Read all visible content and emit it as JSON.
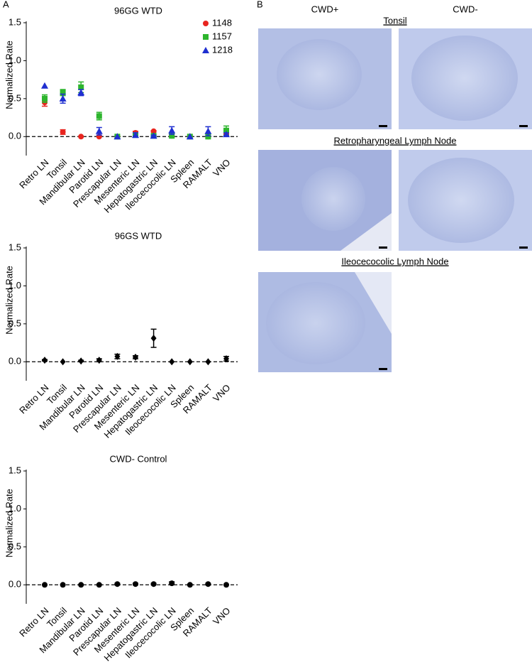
{
  "panel_labels": [
    "A",
    "B"
  ],
  "chart_data": [
    {
      "type": "scatter",
      "title": "96GG WTD",
      "y_label": "Normalized Rate",
      "categories": [
        "Retro LN",
        "Tonsil",
        "Mandibular LN",
        "Parotid LN",
        "Prescapular LN",
        "Mesenteric LN",
        "Hepatogastric LN",
        "Ileocecocolic LN",
        "Spleen",
        "RAMALT",
        "VNO"
      ],
      "series": [
        {
          "name": "1148",
          "color": "#e8251f",
          "marker": "circle",
          "values": [
            0.45,
            0.06,
            0.0,
            0.0,
            0.0,
            0.05,
            0.07,
            0.01,
            0.0,
            0.0,
            0.03
          ],
          "errors": [
            0.05,
            0.03,
            0.0,
            0.0,
            0.0,
            0.02,
            0.01,
            0.0,
            0.0,
            0.0,
            0.01
          ]
        },
        {
          "name": "1157",
          "color": "#2db52d",
          "marker": "square",
          "values": [
            0.5,
            0.58,
            0.65,
            0.27,
            0.0,
            0.02,
            0.01,
            0.01,
            0.0,
            0.0,
            0.08
          ],
          "errors": [
            0.05,
            0.04,
            0.07,
            0.05,
            0.0,
            0.01,
            0.01,
            0.0,
            0.0,
            0.0,
            0.06
          ]
        },
        {
          "name": "1218",
          "color": "#1f2fd0",
          "marker": "triangle",
          "values": [
            0.67,
            0.5,
            0.58,
            0.07,
            0.0,
            0.02,
            0.01,
            0.08,
            0.0,
            0.07,
            0.03
          ],
          "errors": [
            0.0,
            0.06,
            0.04,
            0.05,
            0.0,
            0.03,
            0.01,
            0.05,
            0.0,
            0.06,
            0.02
          ]
        }
      ],
      "ylim": [
        -0.25,
        1.5
      ],
      "yticks": [
        {
          "value": 0,
          "label": "0.0"
        },
        {
          "value": 0.5,
          "label": "0.5"
        },
        {
          "value": 1,
          "label": "1.0"
        },
        {
          "value": 1.5,
          "label": "1.5"
        }
      ],
      "legend": "upper right",
      "zero_line": true
    },
    {
      "type": "scatter",
      "title": "96GS WTD",
      "y_label": "Normalized Rate",
      "categories": [
        "Retro LN",
        "Tonsil",
        "Mandibular LN",
        "Parotid LN",
        "Prescapular LN",
        "Mesenteric LN",
        "Hepatogastric LN",
        "Ileocecocolic LN",
        "Spleen",
        "RAMALT",
        "VNO"
      ],
      "series": [
        {
          "color": "#000000",
          "marker": "diamond",
          "values": [
            0.02,
            0.0,
            0.01,
            0.02,
            0.07,
            0.06,
            0.31,
            0.0,
            0.0,
            0.0,
            0.04
          ],
          "errors": [
            0.01,
            0.0,
            0.01,
            0.02,
            0.03,
            0.02,
            0.12,
            0.0,
            0.0,
            0.0,
            0.03
          ]
        }
      ],
      "ylim": [
        -0.25,
        1.5
      ],
      "yticks": [
        {
          "value": 0,
          "label": "0.0"
        },
        {
          "value": 0.5,
          "label": "0.5"
        },
        {
          "value": 1,
          "label": "1.0"
        },
        {
          "value": 1.5,
          "label": "1.5"
        }
      ],
      "zero_line": true
    },
    {
      "type": "scatter",
      "title": "CWD- Control",
      "y_label": "Normalized Rate",
      "categories": [
        "Retro LN",
        "Tonsil",
        "Mandibular LN",
        "Parotid LN",
        "Prescapular LN",
        "Mesenteric LN",
        "Hepatogastric LN",
        "Ileocecocolic LN",
        "Spleen",
        "RAMALT",
        "VNO"
      ],
      "series": [
        {
          "color": "#000000",
          "marker": "circle",
          "values": [
            0.0,
            0.0,
            0.0,
            0.0,
            0.01,
            0.01,
            0.01,
            0.02,
            0.0,
            0.01,
            0.0
          ],
          "errors": [
            0.0,
            0.0,
            0.0,
            0.0,
            0.01,
            0.01,
            0.01,
            0.02,
            0.0,
            0.01,
            0.0
          ]
        }
      ],
      "ylim": [
        -0.25,
        1.5
      ],
      "yticks": [
        {
          "value": 0,
          "label": "0.0"
        },
        {
          "value": 0.5,
          "label": "0.5"
        },
        {
          "value": 1,
          "label": "1.0"
        },
        {
          "value": 1.5,
          "label": "1.5"
        }
      ],
      "zero_line": true
    }
  ],
  "micrographs": {
    "columns": [
      "CWD+",
      "CWD-"
    ],
    "rows": [
      "Tonsil",
      "Retropharyngeal Lymph Node",
      "Ileocecocolic Lymph Node"
    ]
  }
}
